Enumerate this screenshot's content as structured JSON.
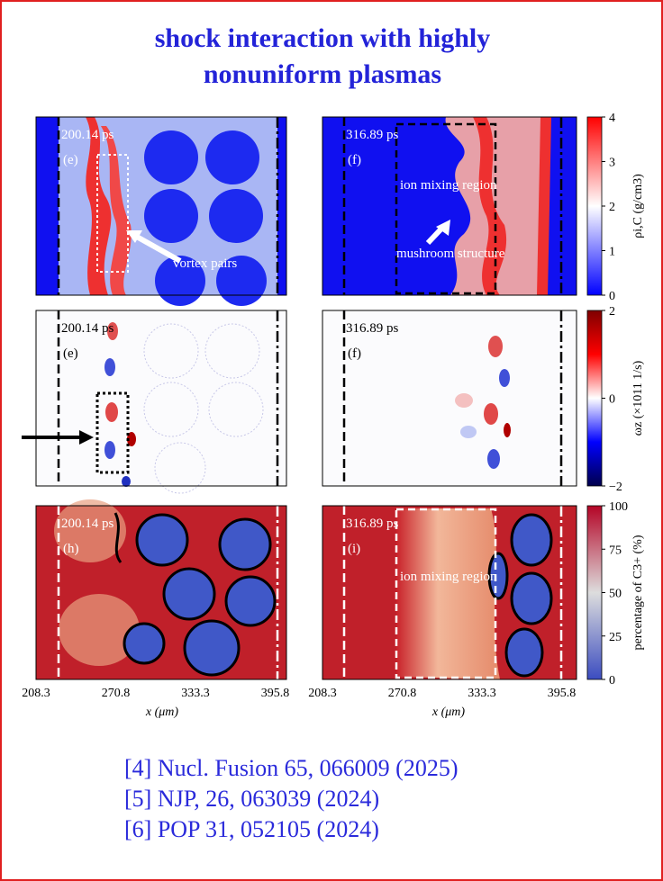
{
  "title": "shock interaction with highly nonuniform plasmas",
  "panels": {
    "row1": {
      "left": {
        "time": "200.14 ps",
        "label": "(e)",
        "annotation": "vortex pairs"
      },
      "right": {
        "time": "316.89 ps",
        "label": "(f)",
        "annotation_1": "ion mixing region",
        "annotation_2": "mushroom structure"
      },
      "colorbar": {
        "label": "ρi,C (g/cm3)",
        "ticks": [
          "0",
          "1",
          "2",
          "3",
          "4"
        ]
      }
    },
    "row2": {
      "left": {
        "time": "200.14 ps",
        "label": "(e)"
      },
      "right": {
        "time": "316.89 ps",
        "label": "(f)"
      },
      "colorbar": {
        "label": "ωz (×1011 1/s)",
        "ticks": [
          "−2",
          "0",
          "2"
        ]
      }
    },
    "row3": {
      "left": {
        "time": "200.14 ps",
        "label": "(h)"
      },
      "right": {
        "time": "316.89 ps",
        "label": "(i)",
        "annotation": "ion mixing region"
      },
      "colorbar": {
        "label": "percentage of C3+ (%)",
        "ticks": [
          "0",
          "25",
          "50",
          "75",
          "100"
        ]
      }
    }
  },
  "x_axis": {
    "ticks": [
      "208.3",
      "270.8",
      "333.3",
      "395.8"
    ],
    "label": "x (μm)"
  },
  "references": [
    "[4] Nucl. Fusion 65, 066009 (2025)",
    "[5] NJP, 26, 063039 (2024)",
    "[6] POP 31, 052105 (2024)"
  ]
}
